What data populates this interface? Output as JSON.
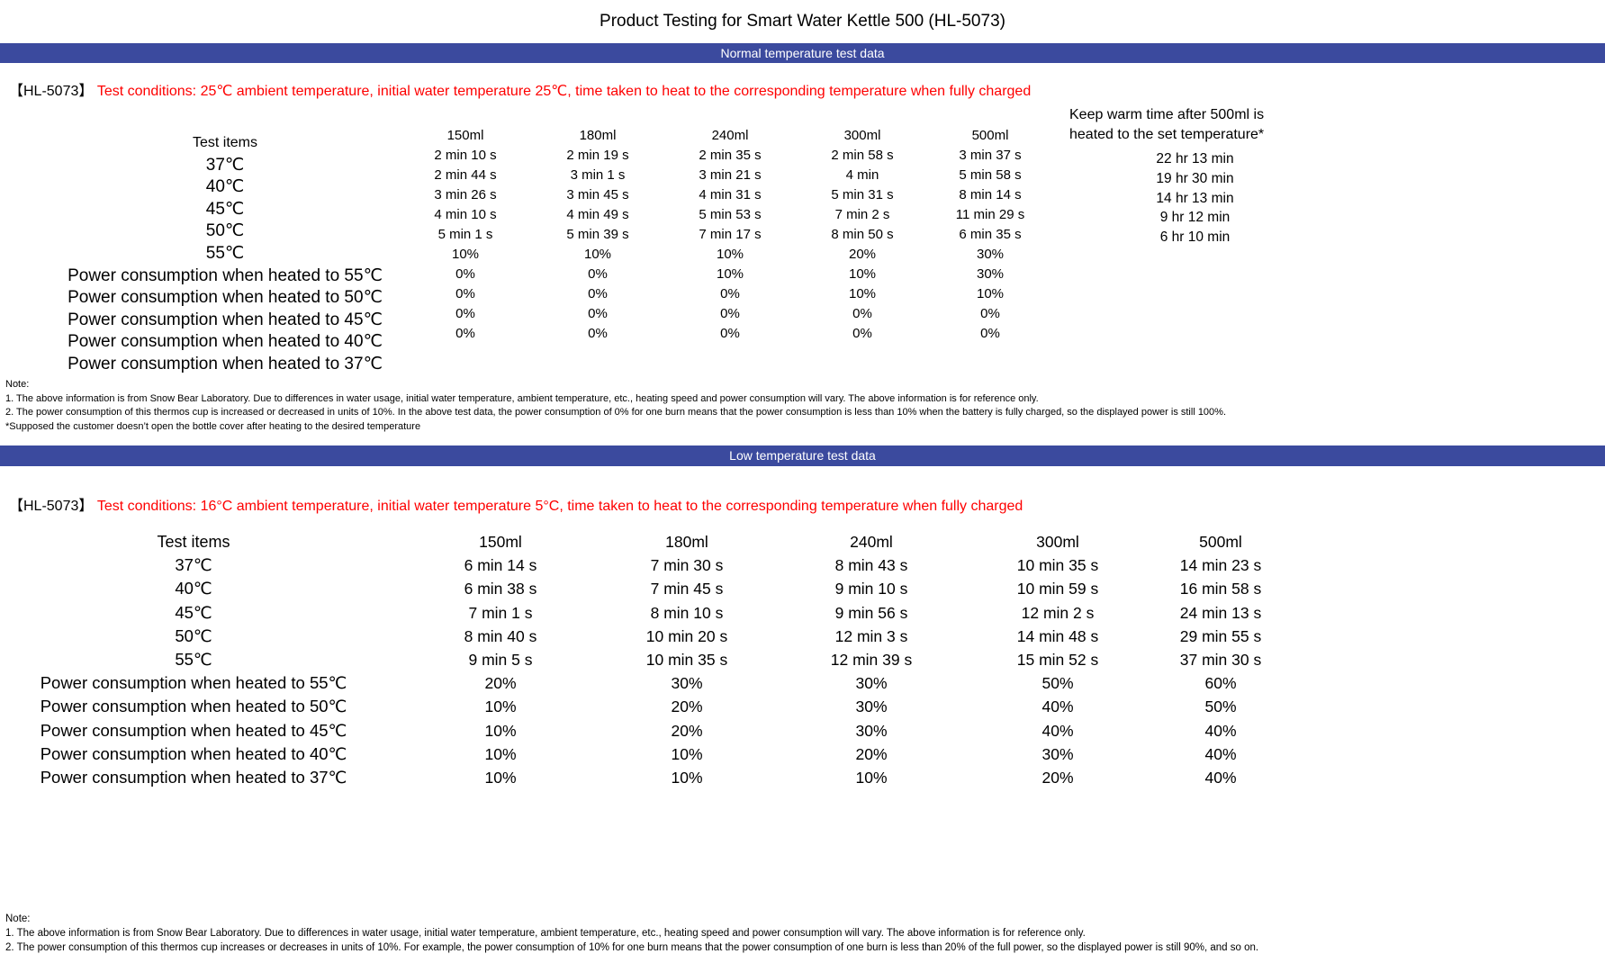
{
  "title": "Product Testing for Smart Water Kettle 500 (HL-5073)",
  "colors": {
    "banner_bg": "#3B4A9E",
    "banner_text": "#FFFFFF",
    "condition_text": "#FE0000",
    "body_text": "#000000"
  },
  "sections": [
    {
      "banner": "Normal temperature test data",
      "model_tag": "【HL-5073】",
      "condition": "Test conditions: 25℃ ambient temperature, initial water temperature 25℃, time taken to heat to the corresponding temperature when fully charged",
      "table": {
        "corner_label": "Test items",
        "row_labels": [
          "37℃",
          "40℃",
          "45℃",
          "50℃",
          "55℃",
          "Power consumption when heated to 55℃",
          "Power consumption when heated to 50℃",
          "Power consumption when heated to 45℃",
          "Power consumption when heated to 40℃",
          "Power consumption when heated to 37℃"
        ],
        "columns": [
          {
            "header": "150ml",
            "values": [
              "2 min 10 s",
              "2 min 44 s",
              "3 min 26 s",
              "4 min 10 s",
              "5 min 1 s",
              "10%",
              "0%",
              "0%",
              "0%",
              "0%"
            ]
          },
          {
            "header": "180ml",
            "values": [
              "2 min 19 s",
              "3 min 1 s",
              "3 min 45 s",
              "4 min 49 s",
              "5 min 39 s",
              "10%",
              "0%",
              "0%",
              "0%",
              "0%"
            ]
          },
          {
            "header": "240ml",
            "values": [
              "2 min 35 s",
              "3 min 21 s",
              "4 min 31 s",
              "5 min 53 s",
              "7 min 17 s",
              "10%",
              "10%",
              "0%",
              "0%",
              "0%"
            ]
          },
          {
            "header": "300ml",
            "values": [
              "2 min 58 s",
              "4 min",
              "5 min 31 s",
              "7 min 2 s",
              "8 min 50 s",
              "20%",
              "10%",
              "10%",
              "0%",
              "0%"
            ]
          },
          {
            "header": "500ml",
            "values": [
              "3 min 37 s",
              "5 min 58 s",
              "8 min 14 s",
              "11 min 29 s",
              "6 min 35 s",
              "30%",
              "30%",
              "10%",
              "0%",
              "0%"
            ]
          }
        ]
      },
      "keep_warm": {
        "header_lines": [
          "Keep warm time after 500ml is",
          "heated to the set temperature*"
        ],
        "values": [
          "22 hr 13 min",
          "19 hr 30 min",
          "14 hr 13 min",
          "9 hr 12 min",
          "6 hr 10 min"
        ]
      },
      "notes": [
        "Note:",
        "1. The above information is from Snow Bear Laboratory. Due to differences in water usage, initial water temperature, ambient temperature, etc., heating speed and power consumption will vary. The above information is for reference only.",
        "2. The power consumption of this thermos cup is increased or decreased in units of 10%. In the above test data, the power consumption of 0% for one burn means that the power consumption is less than 10% when the battery is fully charged, so the displayed power is still 100%.",
        "*Supposed the customer doesn’t open the bottle cover after heating to the desired temperature"
      ]
    },
    {
      "banner": "Low temperature test data",
      "model_tag": "【HL-5073】",
      "condition": "Test conditions: 16°C ambient temperature, initial water temperature 5°C, time taken to heat to the corresponding temperature when fully charged",
      "table": {
        "corner_label": "Test items",
        "row_labels": [
          "37℃",
          "40℃",
          "45℃",
          "50℃",
          "55℃",
          "Power consumption when heated to 55℃",
          "Power consumption when heated to 50℃",
          "Power consumption when heated to 45℃",
          "Power consumption when heated to 40℃",
          "Power consumption when heated to 37℃"
        ],
        "columns": [
          {
            "header": "150ml",
            "values": [
              "6 min 14 s",
              "6 min 38 s",
              "7 min 1 s",
              "8 min 40 s",
              "9 min 5 s",
              "20%",
              "10%",
              "10%",
              "10%",
              "10%"
            ]
          },
          {
            "header": "180ml",
            "values": [
              "7 min 30 s",
              "7 min 45 s",
              "8 min 10 s",
              "10 min 20 s",
              "10 min 35 s",
              "30%",
              "20%",
              "20%",
              "10%",
              "10%"
            ]
          },
          {
            "header": "240ml",
            "values": [
              "8 min 43 s",
              "9 min 10 s",
              "9 min 56 s",
              "12 min 3 s",
              "12 min 39 s",
              "30%",
              "30%",
              "30%",
              "20%",
              "10%"
            ]
          },
          {
            "header": "300ml",
            "values": [
              "10 min 35 s",
              "10 min 59 s",
              "12 min 2 s",
              "14 min 48 s",
              "15 min 52 s",
              "50%",
              "40%",
              "40%",
              "30%",
              "20%"
            ]
          },
          {
            "header": "500ml",
            "values": [
              "14 min 23 s",
              "16 min 58 s",
              "24 min 13 s",
              "29 min 55 s",
              "37 min 30 s",
              "60%",
              "50%",
              "40%",
              "40%",
              "40%"
            ]
          }
        ]
      },
      "notes": [
        "Note:",
        "1. The above information is from Snow Bear Laboratory. Due to differences in water usage, initial water temperature, ambient temperature, etc., heating speed and power consumption will vary. The above information is for reference only.",
        "2. The power consumption of this thermos cup increases or decreases in units of 10%. For example, the power consumption of 10% for one burn means that the power consumption of one burn is less than 20% of the full power, so the displayed power is still 90%, and so on."
      ]
    }
  ]
}
